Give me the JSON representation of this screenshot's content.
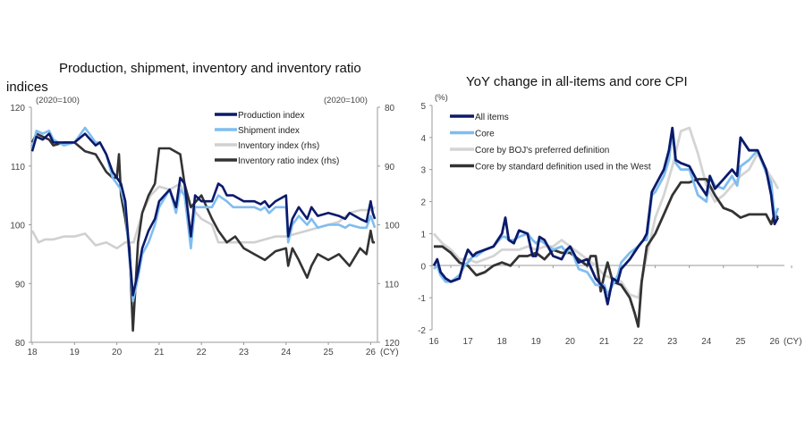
{
  "chart_data": [
    {
      "type": "line",
      "title_line1": "Production, shipment, inventory and inventory ratio",
      "title_line2": "indices",
      "unit_left": "(2020=100)",
      "unit_right": "(2020=100)",
      "xlabel": "(CY)",
      "x_ticks": [
        "18",
        "19",
        "20",
        "21",
        "22",
        "23",
        "24",
        "25",
        "26"
      ],
      "y_left_ticks": [
        "120",
        "110",
        "100",
        "90",
        "80"
      ],
      "y_right_ticks": [
        "80",
        "90",
        "100",
        "110",
        "120"
      ],
      "ylim_left": [
        80,
        120
      ],
      "ylim_right_inverted": [
        80,
        120
      ],
      "xlim": [
        2018,
        2026.3
      ],
      "legend_position": "top-right",
      "series": [
        {
          "name": "Production index",
          "axis": "left",
          "color": "#0b1a6b",
          "x": [
            2018.0,
            2018.1,
            2018.25,
            2018.4,
            2018.5,
            2018.75,
            2019.0,
            2019.25,
            2019.5,
            2019.6,
            2019.75,
            2019.9,
            2020.0,
            2020.1,
            2020.2,
            2020.3,
            2020.38,
            2020.5,
            2020.6,
            2020.75,
            2020.9,
            2021.0,
            2021.25,
            2021.4,
            2021.5,
            2021.6,
            2021.75,
            2021.85,
            2022.0,
            2022.25,
            2022.4,
            2022.5,
            2022.6,
            2022.75,
            2023.0,
            2023.25,
            2023.4,
            2023.5,
            2023.6,
            2023.75,
            2024.0,
            2024.05,
            2024.15,
            2024.3,
            2024.5,
            2024.6,
            2024.75,
            2025.0,
            2025.25,
            2025.4,
            2025.5,
            2025.75,
            2025.9,
            2026.0,
            2026.05,
            2026.1
          ],
          "values": [
            112.5,
            115,
            114.5,
            115.5,
            114,
            114,
            114,
            115.5,
            113.5,
            114,
            112,
            109,
            108,
            107,
            104,
            95,
            88,
            92,
            96,
            99,
            101,
            104,
            106,
            103,
            108,
            107,
            98,
            105,
            104,
            104,
            107,
            106.5,
            105,
            105,
            104,
            104,
            103.5,
            104,
            103,
            104,
            105,
            98,
            101,
            103,
            101,
            103,
            101.5,
            102,
            101.5,
            101,
            102,
            101,
            100.5,
            104,
            102,
            101
          ]
        },
        {
          "name": "Shipment index",
          "axis": "left",
          "color": "#7fbdf0",
          "x": [
            2018.0,
            2018.1,
            2018.25,
            2018.4,
            2018.5,
            2018.75,
            2019.0,
            2019.25,
            2019.5,
            2019.6,
            2019.75,
            2019.9,
            2020.0,
            2020.1,
            2020.2,
            2020.3,
            2020.38,
            2020.5,
            2020.6,
            2020.75,
            2020.9,
            2021.0,
            2021.25,
            2021.4,
            2021.5,
            2021.6,
            2021.75,
            2021.85,
            2022.0,
            2022.25,
            2022.4,
            2022.5,
            2022.6,
            2022.75,
            2023.0,
            2023.25,
            2023.4,
            2023.5,
            2023.6,
            2023.75,
            2024.0,
            2024.05,
            2024.15,
            2024.3,
            2024.5,
            2024.6,
            2024.75,
            2025.0,
            2025.25,
            2025.4,
            2025.5,
            2025.75,
            2025.9,
            2026.0,
            2026.05,
            2026.1
          ],
          "values": [
            113,
            116,
            115.5,
            116,
            114.5,
            113.5,
            114,
            116.5,
            114,
            114,
            112,
            108,
            107,
            106,
            103,
            94,
            87,
            91,
            95,
            97,
            100,
            103,
            106,
            102,
            106,
            105,
            96,
            103,
            103,
            103,
            105,
            104.5,
            104,
            103,
            103,
            103,
            102.5,
            103,
            102,
            103,
            103,
            97,
            100,
            101.5,
            100,
            101,
            99.5,
            100,
            100,
            99.5,
            100,
            99.5,
            99.5,
            101.5,
            100.5,
            99.5
          ]
        },
        {
          "name": "Inventory index (rhs)",
          "axis": "right",
          "color": "#d0d0d0",
          "x": [
            2018.0,
            2018.15,
            2018.3,
            2018.5,
            2018.75,
            2019.0,
            2019.25,
            2019.5,
            2019.75,
            2020.0,
            2020.2,
            2020.4,
            2020.6,
            2020.8,
            2021.0,
            2021.25,
            2021.5,
            2021.6,
            2021.75,
            2022.0,
            2022.25,
            2022.4,
            2022.6,
            2022.8,
            2023.0,
            2023.25,
            2023.5,
            2023.75,
            2024.0,
            2024.25,
            2024.5,
            2024.75,
            2025.0,
            2025.25,
            2025.5,
            2025.75,
            2026.0,
            2026.1
          ],
          "values": [
            101,
            103,
            102.5,
            102.5,
            102,
            102,
            101.5,
            103.5,
            103,
            104,
            103,
            103,
            98,
            95,
            93.5,
            94,
            93,
            95,
            97,
            99,
            100,
            103,
            103,
            103,
            103,
            103,
            102.5,
            102,
            102,
            101.5,
            101,
            100.5,
            100,
            99.5,
            98,
            97.5,
            97.5,
            97
          ]
        },
        {
          "name": "Inventory ratio index (rhs)",
          "axis": "right",
          "color": "#333333",
          "x": [
            2018.0,
            2018.1,
            2018.25,
            2018.4,
            2018.5,
            2018.75,
            2019.0,
            2019.25,
            2019.5,
            2019.75,
            2019.9,
            2020.0,
            2020.05,
            2020.1,
            2020.2,
            2020.3,
            2020.38,
            2020.5,
            2020.6,
            2020.75,
            2020.9,
            2021.0,
            2021.25,
            2021.5,
            2021.6,
            2021.75,
            2022.0,
            2022.25,
            2022.4,
            2022.6,
            2022.8,
            2023.0,
            2023.25,
            2023.5,
            2023.75,
            2024.0,
            2024.05,
            2024.15,
            2024.3,
            2024.5,
            2024.6,
            2024.75,
            2025.0,
            2025.25,
            2025.5,
            2025.75,
            2025.9,
            2026.0,
            2026.05,
            2026.1
          ],
          "values": [
            86,
            84.5,
            85,
            85.5,
            86.5,
            86,
            86,
            87.5,
            88,
            91,
            92,
            92,
            88,
            95,
            99,
            104,
            118,
            103,
            98,
            95,
            93,
            87,
            87,
            88,
            93,
            97,
            95,
            99,
            101,
            103,
            102,
            104,
            105,
            106,
            104.5,
            104,
            107,
            104,
            106,
            109,
            107,
            105,
            106,
            105,
            107,
            104,
            105,
            101,
            103,
            103
          ]
        }
      ]
    },
    {
      "type": "line",
      "title": "YoY change in all-items and core CPI",
      "unit": "(%)",
      "xlabel": "(CY)",
      "x_ticks": [
        "16",
        "17",
        "18",
        "19",
        "20",
        "21",
        "22",
        "23",
        "24",
        "25",
        "26"
      ],
      "y_ticks": [
        "5",
        "4",
        "3",
        "2",
        "1",
        "0",
        "-1",
        "-2"
      ],
      "ylim": [
        -2,
        5
      ],
      "xlim": [
        2016,
        2026.3
      ],
      "legend_position": "top-left",
      "series": [
        {
          "name": "All items",
          "color": "#0b1a6b",
          "x": [
            2016.0,
            2016.1,
            2016.2,
            2016.35,
            2016.5,
            2016.75,
            2016.9,
            2017.0,
            2017.15,
            2017.25,
            2017.5,
            2017.75,
            2018.0,
            2018.1,
            2018.2,
            2018.35,
            2018.5,
            2018.75,
            2018.9,
            2019.0,
            2019.1,
            2019.25,
            2019.5,
            2019.75,
            2019.9,
            2020.0,
            2020.25,
            2020.5,
            2020.75,
            2021.0,
            2021.1,
            2021.25,
            2021.4,
            2021.5,
            2021.75,
            2022.0,
            2022.15,
            2022.25,
            2022.4,
            2022.5,
            2022.75,
            2022.9,
            2023.0,
            2023.1,
            2023.25,
            2023.5,
            2023.75,
            2024.0,
            2024.1,
            2024.25,
            2024.5,
            2024.75,
            2024.9,
            2025.0,
            2025.25,
            2025.5,
            2025.75,
            2025.9,
            2026.0,
            2026.1
          ],
          "values": [
            0,
            0.2,
            -0.2,
            -0.4,
            -0.5,
            -0.4,
            0.2,
            0.5,
            0.3,
            0.4,
            0.5,
            0.6,
            1.0,
            1.5,
            0.8,
            0.7,
            1.1,
            1.0,
            0.3,
            0.3,
            0.9,
            0.8,
            0.3,
            0.2,
            0.5,
            0.6,
            0.1,
            0.2,
            -0.4,
            -0.7,
            -1.2,
            -0.4,
            -0.5,
            -0.1,
            0.2,
            0.6,
            0.8,
            1.0,
            2.3,
            2.5,
            3.0,
            3.6,
            4.3,
            3.3,
            3.2,
            3.1,
            2.6,
            2.2,
            2.8,
            2.4,
            2.7,
            3.0,
            2.8,
            4.0,
            3.6,
            3.6,
            3.0,
            2.2,
            1.3,
            1.5
          ]
        },
        {
          "name": "Core",
          "color": "#7fbdf0",
          "x": [
            2016.0,
            2016.1,
            2016.2,
            2016.35,
            2016.5,
            2016.75,
            2016.9,
            2017.0,
            2017.15,
            2017.25,
            2017.5,
            2017.75,
            2018.0,
            2018.1,
            2018.2,
            2018.35,
            2018.5,
            2018.75,
            2018.9,
            2019.0,
            2019.1,
            2019.25,
            2019.5,
            2019.75,
            2019.9,
            2020.0,
            2020.25,
            2020.5,
            2020.75,
            2021.0,
            2021.1,
            2021.25,
            2021.4,
            2021.5,
            2021.75,
            2022.0,
            2022.15,
            2022.25,
            2022.4,
            2022.5,
            2022.75,
            2022.9,
            2023.0,
            2023.1,
            2023.25,
            2023.5,
            2023.75,
            2024.0,
            2024.1,
            2024.25,
            2024.5,
            2024.75,
            2024.9,
            2025.0,
            2025.25,
            2025.5,
            2025.75,
            2025.9,
            2026.0,
            2026.1
          ],
          "values": [
            -0.1,
            0.0,
            -0.3,
            -0.5,
            -0.5,
            -0.3,
            0.0,
            0.1,
            0.3,
            0.3,
            0.5,
            0.6,
            0.9,
            0.9,
            0.8,
            0.8,
            0.9,
            1.0,
            0.8,
            0.7,
            0.8,
            0.7,
            0.5,
            0.6,
            0.4,
            0.6,
            -0.1,
            -0.2,
            -0.6,
            -0.6,
            -0.9,
            -0.6,
            -0.3,
            0.1,
            0.4,
            0.6,
            0.8,
            0.8,
            2.2,
            2.3,
            2.8,
            3.3,
            4.2,
            3.2,
            3.0,
            3.0,
            2.2,
            2.0,
            2.8,
            2.5,
            2.4,
            2.8,
            2.5,
            3.1,
            3.3,
            3.6,
            2.9,
            2.6,
            1.5,
            1.8
          ]
        },
        {
          "name": "Core by BOJ's preferred definition",
          "color": "#d4d4d4",
          "x": [
            2016.0,
            2016.25,
            2016.5,
            2016.75,
            2017.0,
            2017.25,
            2017.5,
            2017.75,
            2018.0,
            2018.25,
            2018.5,
            2018.75,
            2019.0,
            2019.25,
            2019.5,
            2019.75,
            2020.0,
            2020.25,
            2020.5,
            2020.75,
            2021.0,
            2021.25,
            2021.5,
            2021.75,
            2022.0,
            2022.25,
            2022.5,
            2022.75,
            2023.0,
            2023.25,
            2023.5,
            2023.75,
            2024.0,
            2024.25,
            2024.5,
            2024.75,
            2025.0,
            2025.25,
            2025.5,
            2025.75,
            2026.0,
            2026.1
          ],
          "values": [
            1.0,
            0.7,
            0.5,
            0.2,
            0.2,
            0.1,
            0.2,
            0.3,
            0.5,
            0.5,
            0.5,
            0.6,
            0.5,
            0.6,
            0.6,
            0.8,
            0.6,
            0.4,
            0.2,
            0.0,
            -0.3,
            -0.4,
            -0.5,
            -0.9,
            -1.0,
            0.3,
            1.5,
            2.2,
            3.1,
            4.2,
            4.3,
            3.5,
            2.5,
            2.0,
            2.2,
            2.5,
            2.8,
            3.0,
            3.5,
            3.0,
            2.6,
            2.4
          ]
        },
        {
          "name": "Core by standard definition used in the West",
          "color": "#333333",
          "x": [
            2016.0,
            2016.25,
            2016.5,
            2016.75,
            2017.0,
            2017.25,
            2017.5,
            2017.75,
            2018.0,
            2018.25,
            2018.5,
            2018.75,
            2019.0,
            2019.25,
            2019.5,
            2019.75,
            2020.0,
            2020.25,
            2020.5,
            2020.6,
            2020.75,
            2020.9,
            2021.0,
            2021.1,
            2021.25,
            2021.5,
            2021.75,
            2021.9,
            2022.0,
            2022.1,
            2022.25,
            2022.5,
            2022.75,
            2023.0,
            2023.25,
            2023.5,
            2023.75,
            2024.0,
            2024.25,
            2024.5,
            2024.75,
            2025.0,
            2025.25,
            2025.5,
            2025.75,
            2025.9,
            2026.0,
            2026.1
          ],
          "values": [
            0.6,
            0.6,
            0.4,
            0.1,
            0.0,
            -0.3,
            -0.2,
            0.0,
            0.1,
            0.0,
            0.3,
            0.3,
            0.4,
            0.2,
            0.5,
            0.4,
            0.4,
            0.2,
            0.0,
            0.3,
            0.3,
            -0.8,
            -0.3,
            0.1,
            -0.5,
            -0.6,
            -1.0,
            -1.5,
            -1.9,
            -0.5,
            0.6,
            1.0,
            1.6,
            2.2,
            2.6,
            2.6,
            2.7,
            2.7,
            2.2,
            1.8,
            1.7,
            1.5,
            1.6,
            1.6,
            1.6,
            1.3,
            1.6,
            1.5
          ]
        }
      ]
    }
  ]
}
